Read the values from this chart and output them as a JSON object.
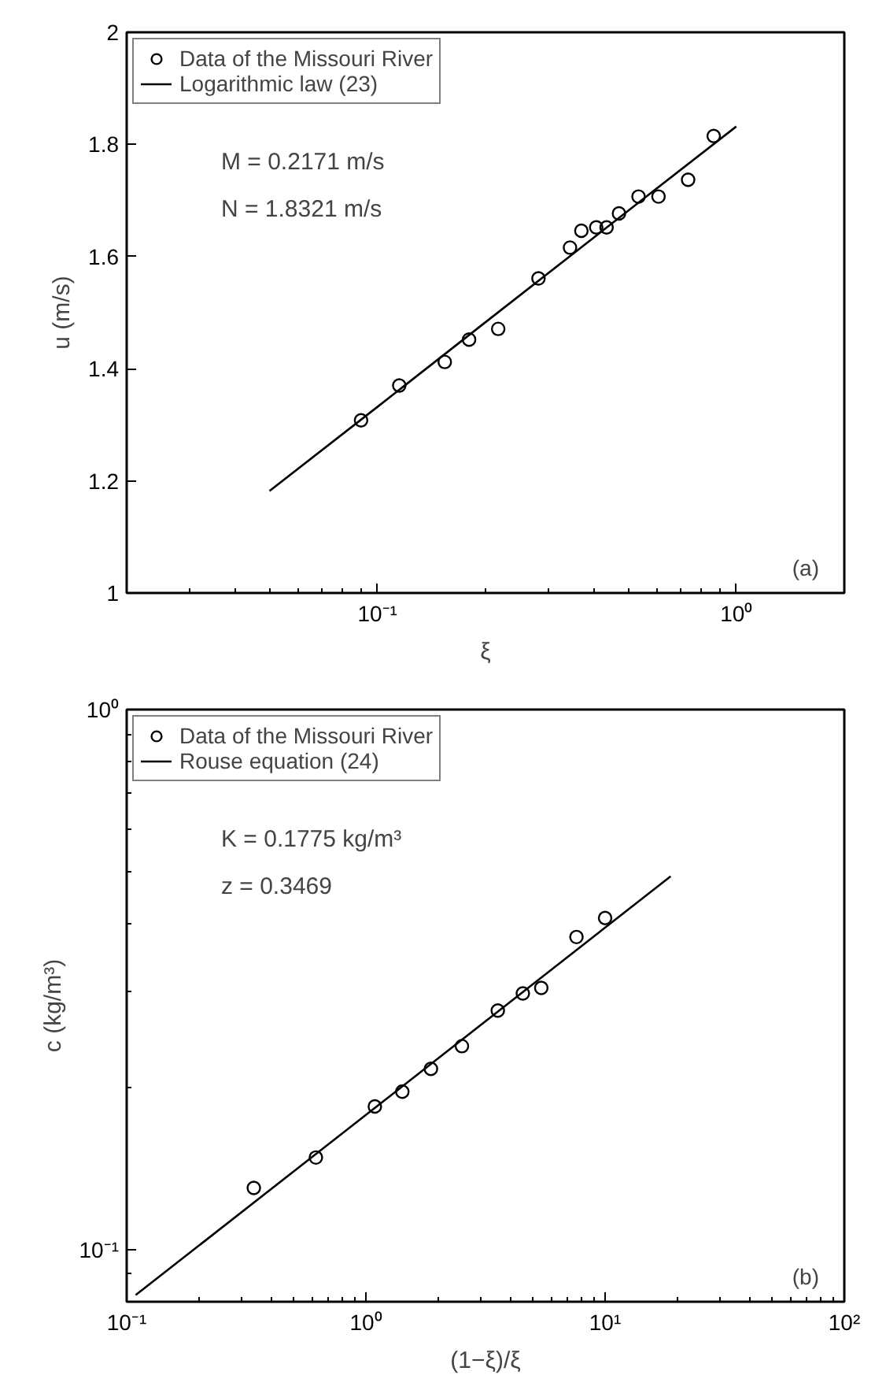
{
  "chart_data": [
    {
      "type": "scatter",
      "xlabel": "ξ",
      "ylabel": "u (m/s)",
      "log": "x",
      "xlim": [
        0.02,
        2
      ],
      "ylim": [
        1,
        2
      ],
      "xticks": [
        {
          "value": 0.1,
          "label": "10⁻¹"
        },
        {
          "value": 1,
          "label": "10⁰"
        }
      ],
      "yticks": [
        1,
        1.2,
        1.4,
        1.6,
        1.8,
        2
      ],
      "legend": "top left",
      "grid": false,
      "annotations": [
        "M = 0.2171 m/s",
        "N = 1.8321 m/s",
        "(a)"
      ],
      "series": [
        {
          "name": "Data of the Missouri River",
          "marker": "circle",
          "color": "#000000",
          "x": [
            0.09,
            0.115,
            0.154,
            0.18,
            0.217,
            0.281,
            0.344,
            0.37,
            0.407,
            0.435,
            0.471,
            0.534,
            0.607,
            0.734,
            0.865
          ],
          "values": [
            1.308,
            1.37,
            1.412,
            1.452,
            1.471,
            1.561,
            1.616,
            1.646,
            1.652,
            1.652,
            1.677,
            1.707,
            1.707,
            1.737,
            1.815
          ]
        },
        {
          "name": "Logarithmic law (23)",
          "type": "line",
          "marker": "none",
          "color": "#000000",
          "line_style": "solid",
          "x": [
            0.05,
            0.1,
            0.2,
            0.5,
            1.0
          ],
          "values": [
            1.182,
            1.332,
            1.483,
            1.682,
            1.832
          ]
        }
      ]
    },
    {
      "type": "scatter",
      "xlabel": "(1−ξ)/ξ",
      "ylabel": "c (kg/m³)",
      "log": "xy",
      "xlim": [
        0.1,
        100
      ],
      "ylim": [
        0.08,
        1
      ],
      "xticks": [
        {
          "value": 0.1,
          "label": "10⁻¹"
        },
        {
          "value": 1,
          "label": "10⁰"
        },
        {
          "value": 10,
          "label": "10¹"
        },
        {
          "value": 100,
          "label": "10²"
        }
      ],
      "yticks": [
        {
          "value": 0.1,
          "label": "10⁻¹"
        },
        {
          "value": 1,
          "label": "10⁰"
        }
      ],
      "legend": "top left",
      "grid": false,
      "annotations": [
        "K = 0.1775 kg/m³",
        "z = 0.3469",
        "(b)"
      ],
      "series": [
        {
          "name": "Data of the Missouri River",
          "marker": "circle",
          "color": "#000000",
          "x": [
            0.34,
            0.618,
            1.09,
            1.42,
            1.87,
            2.52,
            3.56,
            4.53,
            5.41,
            7.59,
            10.0
          ],
          "values": [
            0.13,
            0.148,
            0.184,
            0.196,
            0.216,
            0.238,
            0.277,
            0.298,
            0.305,
            0.379,
            0.411
          ]
        },
        {
          "name": "Rouse equation (24)",
          "type": "line",
          "marker": "none",
          "color": "#000000",
          "line_style": "solid",
          "x": [
            0.109,
            1.0,
            18.8
          ],
          "values": [
            0.0823,
            0.1775,
            0.491
          ]
        }
      ]
    }
  ]
}
